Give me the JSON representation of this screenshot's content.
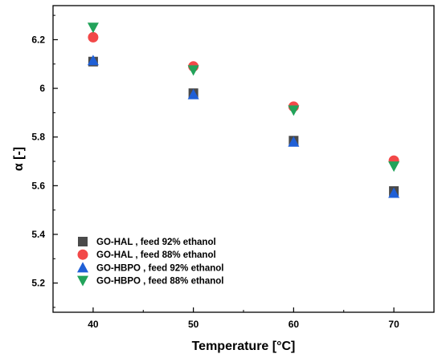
{
  "chart_data": {
    "type": "scatter",
    "xlabel": "Temperature [°C]",
    "ylabel": "α [-]",
    "xlim": [
      36,
      74
    ],
    "ylim": [
      5.08,
      6.34
    ],
    "x_ticks": [
      40,
      50,
      60,
      70
    ],
    "y_ticks": [
      5.2,
      5.4,
      5.6,
      5.8,
      6,
      6.2
    ],
    "y_tick_labels": [
      "5.2",
      "5.4",
      "5.6",
      "5.8",
      "6",
      "6.2"
    ],
    "legend_position": "bottom-left",
    "grid": false,
    "series": [
      {
        "name": "GO-HAL , feed 92% ethanol",
        "marker": "square",
        "color": "#4a4a4a",
        "x": [
          40,
          50,
          60,
          70
        ],
        "y": [
          6.11,
          5.98,
          5.785,
          5.578
        ]
      },
      {
        "name": "GO-HAL , feed 88% ethanol",
        "marker": "circle",
        "color": "#f24848",
        "x": [
          40,
          50,
          60,
          70
        ],
        "y": [
          6.21,
          6.09,
          5.925,
          5.703
        ]
      },
      {
        "name": "GO-HBPO , feed 92% ethanol",
        "marker": "triangle-up",
        "color": "#1f5fd6",
        "x": [
          40,
          50,
          60,
          70
        ],
        "y": [
          6.115,
          5.975,
          5.78,
          5.57
        ]
      },
      {
        "name": "GO-HBPO , feed 88% ethanol",
        "marker": "triangle-down",
        "color": "#22a35a",
        "x": [
          40,
          50,
          60,
          70
        ],
        "y": [
          6.25,
          6.075,
          5.91,
          5.68
        ]
      }
    ]
  }
}
